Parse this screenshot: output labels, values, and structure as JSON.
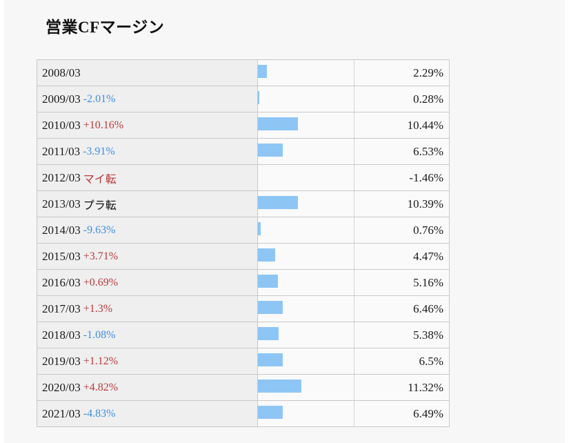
{
  "title": "営業CFマージン",
  "chart_data": {
    "type": "bar",
    "title": "営業CFマージン",
    "unit": "%",
    "categories": [
      "2008/03",
      "2009/03",
      "2010/03",
      "2011/03",
      "2012/03",
      "2013/03",
      "2014/03",
      "2015/03",
      "2016/03",
      "2017/03",
      "2018/03",
      "2019/03",
      "2020/03",
      "2021/03"
    ],
    "values": [
      2.29,
      0.28,
      10.44,
      6.53,
      -1.46,
      10.39,
      0.76,
      4.47,
      5.16,
      6.46,
      5.38,
      6.5,
      11.32,
      6.49
    ],
    "value_labels": [
      "2.29%",
      "0.28%",
      "10.44%",
      "6.53%",
      "-1.46%",
      "10.39%",
      "0.76%",
      "4.47%",
      "5.16%",
      "6.46%",
      "5.38%",
      "6.5%",
      "11.32%",
      "6.49%"
    ],
    "change_labels": [
      "",
      "-2.01%",
      "+10.16%",
      "-3.91%",
      "マイ転",
      "プラ転",
      "-9.63%",
      "+3.71%",
      "+0.69%",
      "+1.3%",
      "-1.08%",
      "+1.12%",
      "+4.82%",
      "-4.83%"
    ],
    "change_types": [
      "none",
      "down",
      "up",
      "down",
      "flip-neg",
      "flip-pos",
      "down",
      "up",
      "up",
      "up",
      "down",
      "up",
      "up",
      "down"
    ],
    "xlim": [
      0,
      11.32
    ],
    "bar_color": "#8dc6f5",
    "up_color": "#b8393b",
    "down_color": "#3e8ee3",
    "grid": false,
    "legend": "none"
  }
}
